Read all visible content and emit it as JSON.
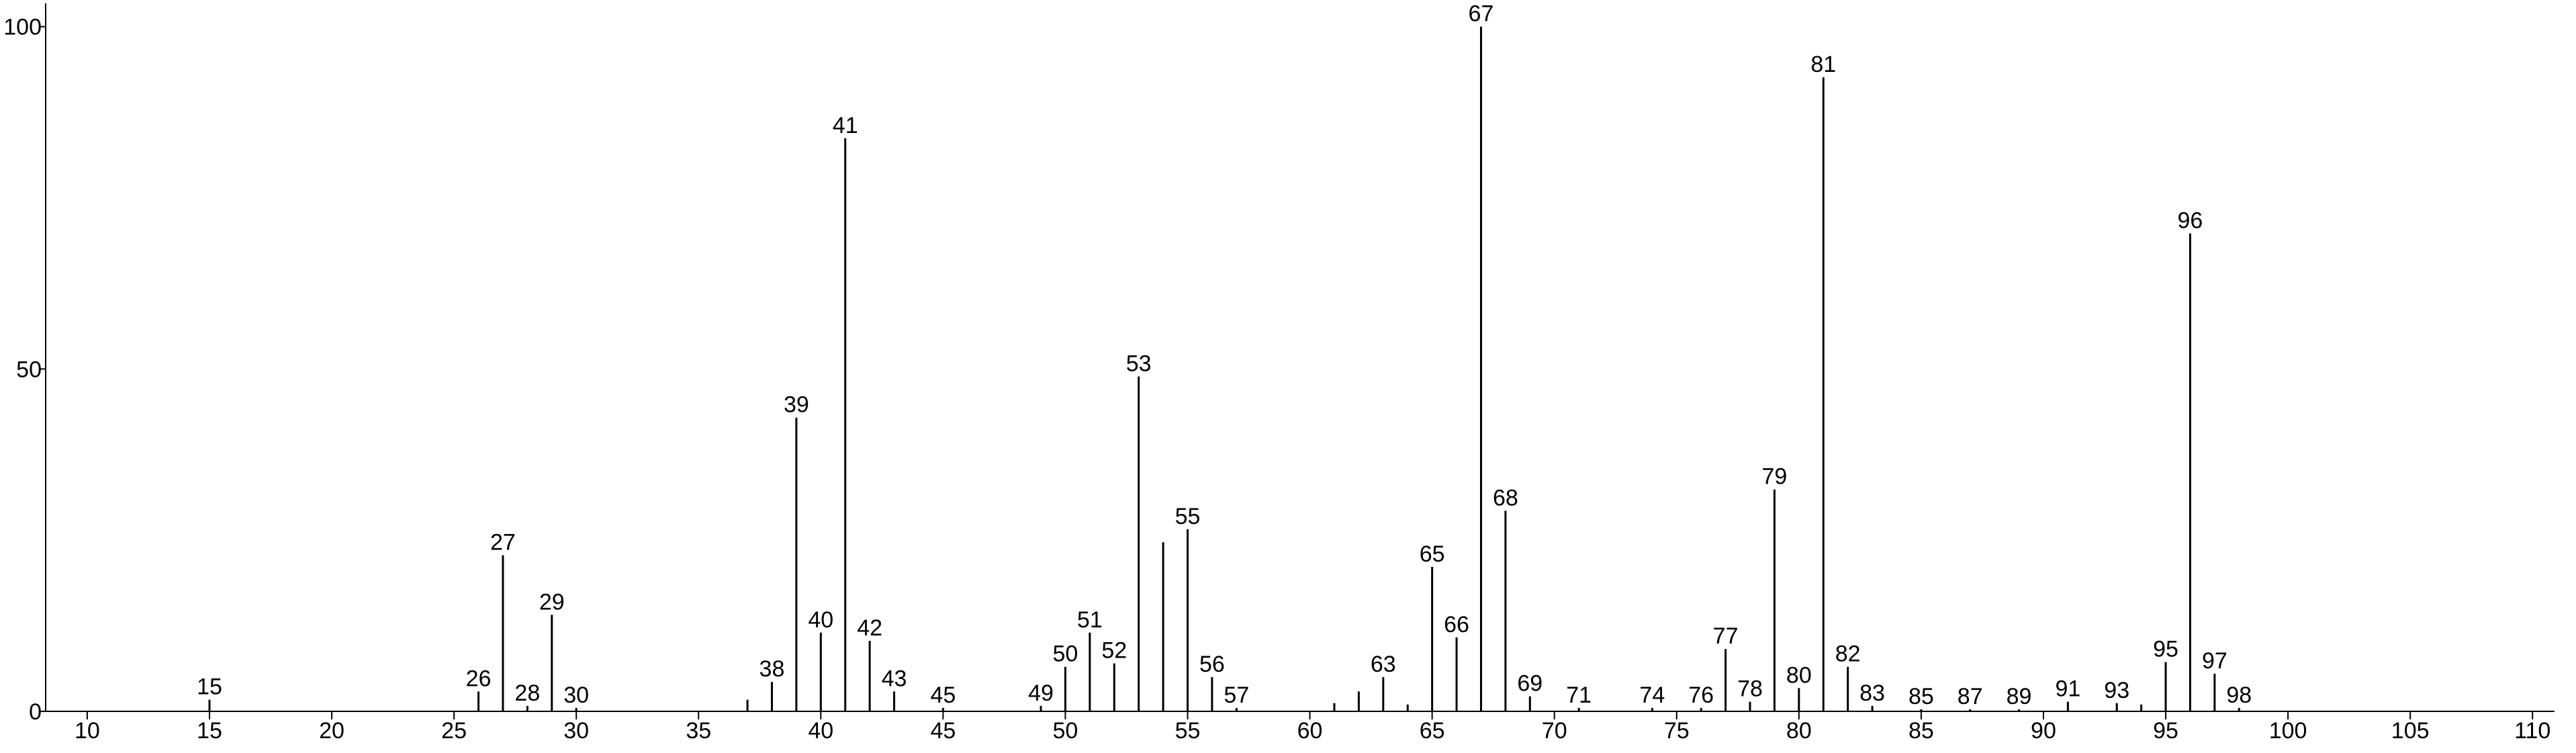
{
  "chart_data": {
    "type": "stick",
    "x": [
      15,
      26,
      27,
      28,
      29,
      30,
      37,
      38,
      39,
      40,
      41,
      42,
      43,
      45,
      49,
      50,
      51,
      52,
      53,
      54,
      55,
      56,
      57,
      61,
      62,
      63,
      64,
      65,
      66,
      67,
      68,
      69,
      71,
      74,
      76,
      77,
      78,
      79,
      80,
      81,
      82,
      83,
      85,
      87,
      89,
      91,
      93,
      94,
      95,
      96,
      97,
      98
    ],
    "values": [
      1.7,
      2.9,
      22.8,
      0.8,
      14.1,
      0.5,
      1.7,
      4.3,
      42.9,
      11.5,
      83.7,
      10.3,
      2.9,
      0.5,
      0.8,
      6.5,
      11.5,
      7,
      48.9,
      24.7,
      26.6,
      5,
      0.5,
      1.2,
      2.9,
      5,
      1,
      21.1,
      10.8,
      100,
      29.3,
      2.2,
      0.5,
      0.5,
      0.5,
      9.1,
      1.4,
      32.4,
      3.4,
      92.6,
      6.5,
      0.8,
      0.3,
      0.3,
      0.3,
      1.4,
      1.2,
      1,
      7.2,
      69.8,
      5.5,
      0.5
    ],
    "point_labels": [
      "15",
      "26",
      "27",
      "28",
      "29",
      "30",
      null,
      "38",
      "39",
      "40",
      "41",
      "42",
      "43",
      "45",
      "49",
      "50",
      "51",
      "52",
      "53",
      null,
      "55",
      "56",
      "57",
      null,
      null,
      "63",
      null,
      "65",
      "66",
      "67",
      "68",
      "69",
      "71",
      "74",
      "76",
      "77",
      "78",
      "79",
      "80",
      "81",
      "82",
      "83",
      "85",
      "87",
      "89",
      "91",
      "93",
      null,
      "95",
      "96",
      "97",
      "98"
    ],
    "color": "#000000",
    "xlim": [
      8.3,
      110.9
    ],
    "xticks": [
      10,
      15,
      20,
      25,
      30,
      35,
      40,
      45,
      50,
      55,
      60,
      65,
      70,
      75,
      80,
      85,
      90,
      95,
      100,
      105,
      110
    ],
    "ylim": [
      0,
      103.4
    ],
    "yticks": [
      0,
      50,
      100
    ]
  }
}
